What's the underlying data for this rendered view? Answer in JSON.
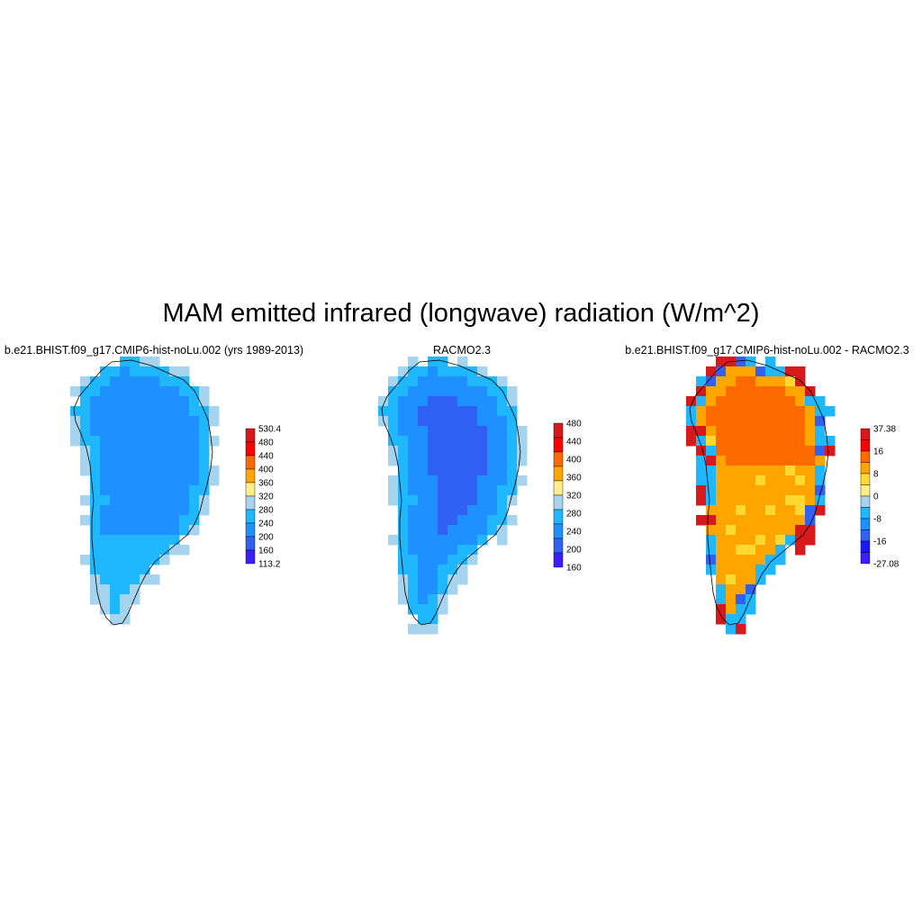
{
  "title": "MAM emitted infrared (longwave) radiation (W/m^2)",
  "panels": [
    {
      "subtitle": "b.e21.BHIST.f09_g17.CMIP6-hist-noLu.002 (yrs 1989-2013)",
      "colorbar": {
        "labels": [
          "530.4",
          "480",
          "440",
          "400",
          "360",
          "320",
          "280",
          "240",
          "200",
          "160",
          "113.2"
        ],
        "colors": [
          "#d7191c",
          "#ff0000",
          "#ff6a00",
          "#ffa500",
          "#ffef8a",
          "#a6d3ee",
          "#1fb8ff",
          "#1f90ff",
          "#3160f5",
          "#3a1fff"
        ]
      },
      "dominant_colors": [
        "#1f90ff",
        "#1fb8ff",
        "#a6d3ee",
        "#ffef8a"
      ]
    },
    {
      "subtitle": "RACMO2.3",
      "colorbar": {
        "labels": [
          "480",
          "440",
          "400",
          "360",
          "320",
          "280",
          "240",
          "200",
          "160"
        ],
        "colors": [
          "#d7191c",
          "#ff0000",
          "#ff6a00",
          "#ffa500",
          "#ffef8a",
          "#a6d3ee",
          "#1fb8ff",
          "#1f90ff",
          "#3160f5",
          "#3a1fff"
        ]
      },
      "dominant_colors": [
        "#3160f5",
        "#1f90ff",
        "#1fb8ff",
        "#a6d3ee",
        "#ffef8a"
      ]
    },
    {
      "subtitle": "b.e21.BHIST.f09_g17.CMIP6-hist-noLu.002 - RACMO2.3",
      "colorbar": {
        "labels": [
          "37.38",
          "16",
          "8",
          "0",
          "-8",
          "-16",
          "-27.08"
        ],
        "colors": [
          "#d7191c",
          "#ff0000",
          "#ff6a00",
          "#ffa500",
          "#ffd92f",
          "#ffef8a",
          "#a6d3ee",
          "#1fb8ff",
          "#1f90ff",
          "#3160f5",
          "#1a1aff",
          "#3a1fff"
        ]
      },
      "dominant_colors": [
        "#ffa500",
        "#ff6a00",
        "#ffd92f",
        "#d7191c",
        "#1fb8ff",
        "#3160f5"
      ]
    }
  ]
}
